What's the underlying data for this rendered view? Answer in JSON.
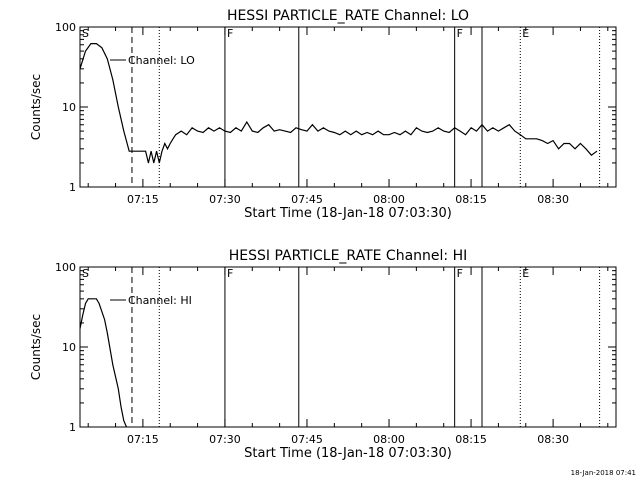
{
  "footer_timestamp": "18-Jan-2018 07:41",
  "chart_data": [
    {
      "type": "line",
      "title": "HESSI PARTICLE_RATE Channel: LO",
      "xlabel": "Start Time (18-Jan-18 07:03:30)",
      "ylabel": "Counts/sec",
      "yscale": "log",
      "xlim": [
        "07:03:30",
        "08:41:30"
      ],
      "ylim": [
        1,
        100
      ],
      "x_ticks": [
        "07:15",
        "07:30",
        "07:45",
        "08:00",
        "08:15",
        "08:30"
      ],
      "y_ticks": [
        "1",
        "10",
        "100"
      ],
      "legend": "Channel: LO",
      "series": [
        {
          "name": "Channel: LO",
          "x": [
            "07:03:30",
            "07:04:30",
            "07:05:30",
            "07:06:30",
            "07:07:30",
            "07:08:30",
            "07:09:30",
            "07:10:30",
            "07:11:30",
            "07:12:30",
            "07:13:30",
            "07:14:30",
            "07:15:30",
            "07:16:00",
            "07:16:30",
            "07:17:00",
            "07:17:30",
            "07:18:00",
            "07:18:30",
            "07:19:00",
            "07:19:30",
            "07:20:00",
            "07:20:30",
            "07:21:00",
            "07:22:00",
            "07:23:00",
            "07:24:00",
            "07:25:00",
            "07:26:00",
            "07:27:00",
            "07:28:00",
            "07:29:00",
            "07:30:00",
            "07:31:00",
            "07:32:00",
            "07:33:00",
            "07:34:00",
            "07:35:00",
            "07:36:00",
            "07:37:00",
            "07:38:00",
            "07:39:00",
            "07:40:00",
            "07:41:00",
            "07:42:00",
            "07:43:00",
            "07:44:00",
            "07:45:00",
            "07:46:00",
            "07:47:00",
            "07:48:00",
            "07:49:00",
            "07:50:00",
            "07:51:00",
            "07:52:00",
            "07:53:00",
            "07:54:00",
            "07:55:00",
            "07:56:00",
            "07:57:00",
            "07:58:00",
            "07:59:00",
            "08:00:00",
            "08:01:00",
            "08:02:00",
            "08:03:00",
            "08:04:00",
            "08:05:00",
            "08:06:00",
            "08:07:00",
            "08:08:00",
            "08:09:00",
            "08:10:00",
            "08:11:00",
            "08:12:00",
            "08:13:00",
            "08:14:00",
            "08:15:00",
            "08:16:00",
            "08:17:00",
            "08:18:00",
            "08:19:00",
            "08:20:00",
            "08:21:00",
            "08:22:00",
            "08:23:00",
            "08:24:00",
            "08:25:00",
            "08:26:00",
            "08:27:00",
            "08:28:00",
            "08:29:00",
            "08:30:00",
            "08:31:00",
            "08:32:00",
            "08:33:00",
            "08:34:00",
            "08:35:00",
            "08:36:00",
            "08:37:00",
            "08:38:00"
          ],
          "values": [
            30,
            50,
            62,
            62,
            55,
            40,
            22,
            10,
            5,
            2.8,
            2.8,
            2.8,
            2.8,
            2.0,
            2.8,
            2.0,
            2.8,
            2.0,
            2.8,
            3.5,
            3.0,
            3.5,
            4.0,
            4.5,
            5.0,
            4.5,
            5.5,
            5.0,
            4.8,
            5.5,
            5.0,
            5.5,
            5.0,
            4.8,
            5.5,
            5.0,
            6.5,
            5.0,
            4.8,
            5.5,
            6.0,
            5.0,
            5.2,
            5.0,
            4.8,
            5.5,
            5.2,
            5.0,
            6.0,
            5.0,
            5.5,
            5.0,
            4.8,
            4.5,
            5.0,
            4.5,
            5.0,
            4.5,
            4.8,
            4.5,
            5.0,
            4.5,
            4.5,
            4.8,
            4.5,
            5.0,
            4.5,
            5.5,
            5.0,
            4.8,
            5.0,
            5.5,
            5.0,
            4.8,
            5.5,
            5.0,
            4.5,
            5.5,
            5.0,
            6.0,
            5.0,
            5.5,
            5.0,
            5.5,
            6.0,
            5.0,
            4.5,
            4.0,
            4.0,
            4.0,
            3.8,
            3.5,
            3.8,
            3.0,
            3.5,
            3.5,
            3.0,
            3.5,
            3.0,
            2.5,
            2.8
          ]
        }
      ],
      "vlines": [
        {
          "time": "07:13:00",
          "style": "dashed",
          "label": "S"
        },
        {
          "time": "07:18:00",
          "style": "dotted",
          "label": ""
        },
        {
          "time": "07:30:00",
          "style": "solid",
          "label": "F"
        },
        {
          "time": "07:43:30",
          "style": "solid",
          "label": ""
        },
        {
          "time": "08:12:00",
          "style": "solid",
          "label": "F"
        },
        {
          "time": "08:17:00",
          "style": "solid",
          "label": ""
        },
        {
          "time": "08:24:00",
          "style": "dotted",
          "label": "E"
        },
        {
          "time": "08:38:30",
          "style": "dotted",
          "label": ""
        }
      ]
    },
    {
      "type": "line",
      "title": "HESSI PARTICLE_RATE Channel: HI",
      "xlabel": "Start Time (18-Jan-18 07:03:30)",
      "ylabel": "Counts/sec",
      "yscale": "log",
      "xlim": [
        "07:03:30",
        "08:41:30"
      ],
      "ylim": [
        1,
        100
      ],
      "x_ticks": [
        "07:15",
        "07:30",
        "07:45",
        "08:00",
        "08:15",
        "08:30"
      ],
      "y_ticks": [
        "1",
        "10",
        "100"
      ],
      "legend": "Channel: HI",
      "series": [
        {
          "name": "Channel: HI",
          "x": [
            "07:03:30",
            "07:04:00",
            "07:04:30",
            "07:05:00",
            "07:05:30",
            "07:06:30",
            "07:07:00",
            "07:08:00",
            "07:08:30",
            "07:09:30",
            "07:10:30",
            "07:11:00",
            "07:11:30",
            "07:12:00"
          ],
          "values": [
            17,
            25,
            35,
            40,
            40,
            40,
            35,
            22,
            15,
            6,
            3,
            1.8,
            1.2,
            1.0
          ]
        }
      ],
      "vlines": [
        {
          "time": "07:13:00",
          "style": "dashed",
          "label": "S"
        },
        {
          "time": "07:18:00",
          "style": "dotted",
          "label": ""
        },
        {
          "time": "07:30:00",
          "style": "solid",
          "label": "F"
        },
        {
          "time": "07:43:30",
          "style": "solid",
          "label": ""
        },
        {
          "time": "08:12:00",
          "style": "solid",
          "label": "F"
        },
        {
          "time": "08:17:00",
          "style": "solid",
          "label": ""
        },
        {
          "time": "08:24:00",
          "style": "dotted",
          "label": "E"
        },
        {
          "time": "08:38:30",
          "style": "dotted",
          "label": ""
        }
      ]
    }
  ]
}
